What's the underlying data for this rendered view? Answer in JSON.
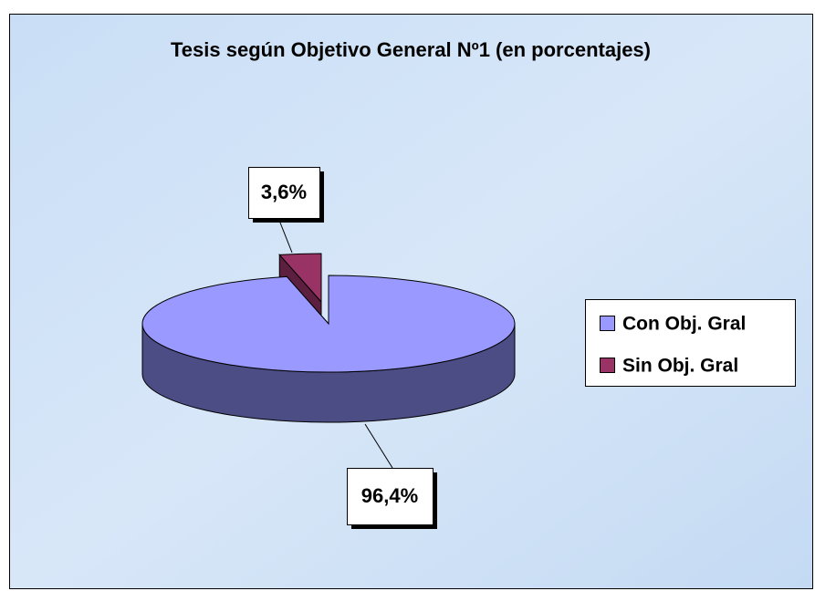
{
  "chart_data": {
    "type": "pie3d",
    "title": "Tesis según Objetivo General Nº1 (en porcentajes)",
    "categories": [
      "Con Obj. Gral",
      "Sin Obj. Gral"
    ],
    "values": [
      96.4,
      3.6
    ],
    "value_labels": [
      "96,4%",
      "3,6%"
    ],
    "colors": [
      "#9999ff",
      "#993366"
    ],
    "side_colors": [
      "#4d4d86",
      "#5c1f3f"
    ],
    "legend": "right"
  }
}
